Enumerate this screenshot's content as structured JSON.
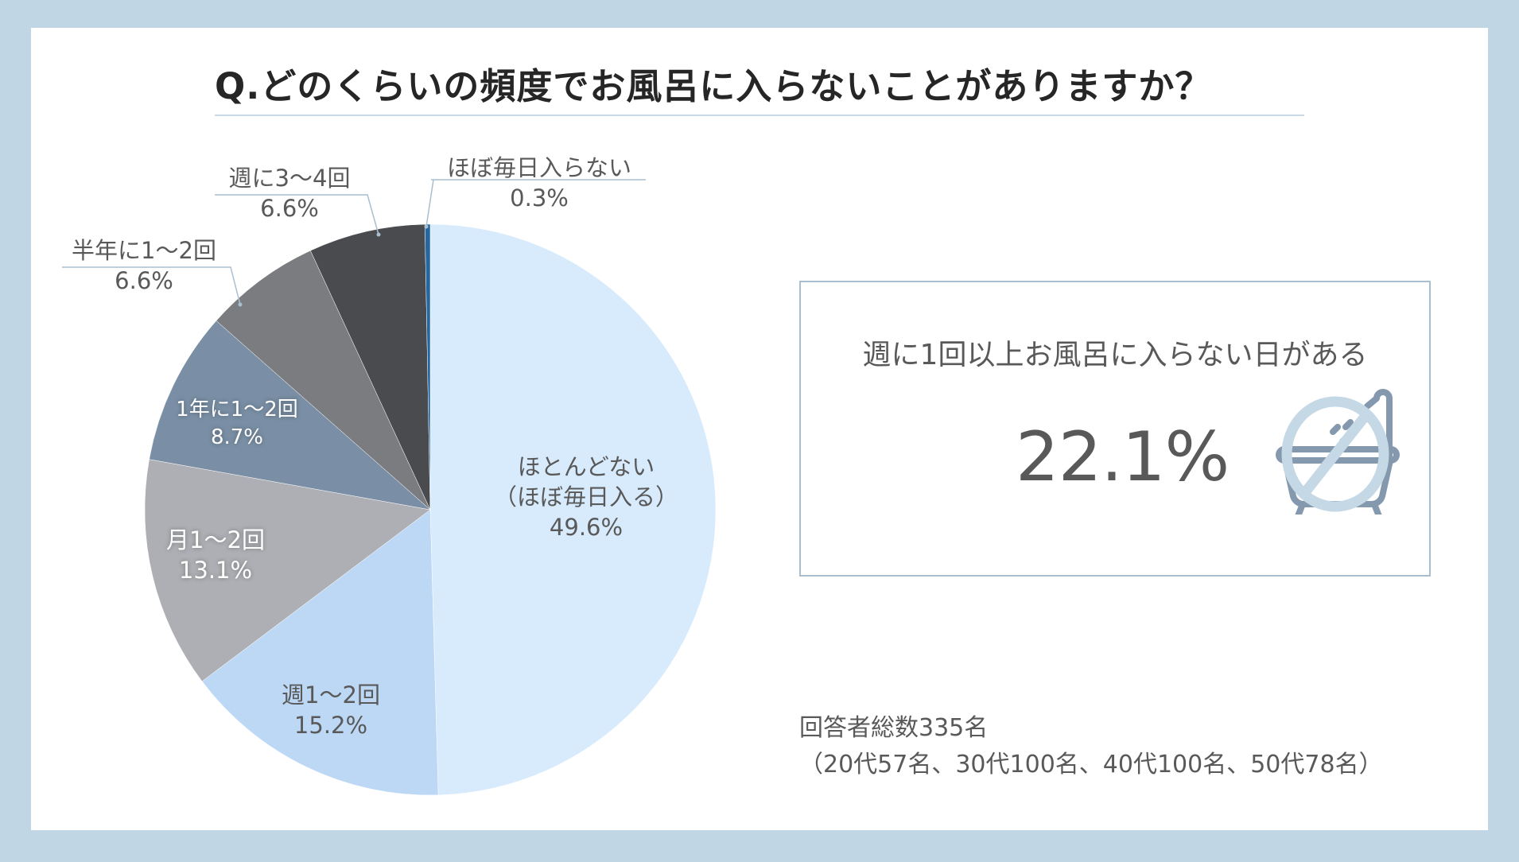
{
  "title": "Q.どのくらいの頻度でお風呂に入らないことがありますか？",
  "colors": {
    "background": "#c1d6e5",
    "card": "#ffffff",
    "text": "#595959",
    "title": "#262626",
    "leader_line": "#a9bfd0"
  },
  "chart_data": {
    "type": "pie",
    "title": "Q.どのくらいの頻度でお風呂に入らないことがありますか？",
    "start_angle": "12 o'clock, clockwise",
    "slices": [
      {
        "label": "ほとんどない（ほぼ毎日入る）",
        "value": 49.6,
        "color": "#d8ebfc"
      },
      {
        "label": "週1〜2回",
        "value": 15.2,
        "color": "#bcd8f5"
      },
      {
        "label": "月1〜2回",
        "value": 13.1,
        "color": "#aeafb4"
      },
      {
        "label": "1年に1〜2回",
        "value": 8.7,
        "color": "#7a8fa5"
      },
      {
        "label": "半年に1〜2回",
        "value": 6.6,
        "color": "#7b7c7f"
      },
      {
        "label": "週に3〜4回",
        "value": 6.6,
        "color": "#4a4b4e"
      },
      {
        "label": "ほぼ毎日入らない",
        "value": 0.3,
        "color": "#2567a0"
      }
    ],
    "unit": "%",
    "legend": "none (data labels on/around slices)"
  },
  "labels": {
    "rarely_line1": "ほとんどない",
    "rarely_line2": "（ほぼ毎日入る）",
    "rarely_pct": "49.6%",
    "weekly12_name": "週1〜2回",
    "weekly12_pct": "15.2%",
    "monthly_name": "月1〜2回",
    "monthly_pct": "13.1%",
    "yearly_name": "1年に1〜2回",
    "yearly_pct": "8.7%",
    "halfyear_name": "半年に1〜2回",
    "halfyear_pct": "6.6%",
    "weekly34_name": "週に3〜4回",
    "weekly34_pct": "6.6%",
    "daily_name": "ほぼ毎日入らない",
    "daily_pct": "0.3%"
  },
  "summary": {
    "caption": "週に1回以上お風呂に入らない日がある",
    "value": "22.1%",
    "icon": "no-bath-icon"
  },
  "respondents": {
    "total": "回答者総数335名",
    "breakdown": "（20代57名、30代100名、40代100名、50代78名）"
  }
}
